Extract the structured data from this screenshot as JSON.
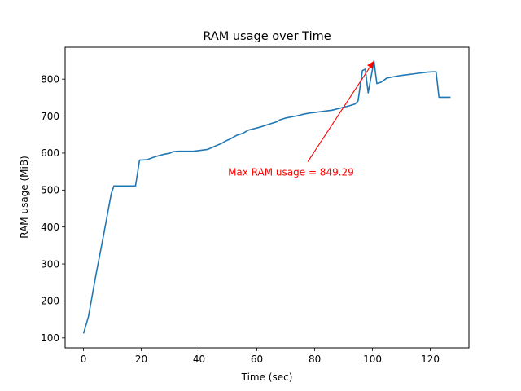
{
  "chart_data": {
    "type": "line",
    "title": "RAM usage over Time",
    "xlabel": "Time (sec)",
    "ylabel": "RAM usage (MiB)",
    "xlim": [
      -6.35,
      133.35
    ],
    "ylim": [
      73.1,
      886.4
    ],
    "xticks": [
      0,
      20,
      40,
      60,
      80,
      100,
      120
    ],
    "yticks": [
      100,
      200,
      300,
      400,
      500,
      600,
      700,
      800
    ],
    "grid": false,
    "line_color": "#1f77b4",
    "series": [
      {
        "x": [
          0,
          1.7,
          4.3,
          7,
          9.6,
          10.5,
          13,
          18,
          19.4,
          22,
          24,
          26,
          28,
          30,
          31,
          33,
          35,
          38,
          40,
          43,
          45,
          48,
          49,
          51,
          53,
          55,
          57,
          59,
          61,
          63,
          65,
          67,
          68,
          70,
          72,
          74,
          76,
          78,
          80,
          82,
          84,
          86,
          88,
          90,
          92,
          94,
          95,
          96.5,
          97.5,
          98.5,
          100.5,
          101.5,
          103,
          105,
          107,
          109,
          111,
          113,
          115,
          117,
          119,
          121,
          122,
          123,
          125,
          127
        ],
        "y": [
          112,
          157,
          270,
          380,
          490,
          511,
          511,
          511,
          581,
          582,
          588,
          593,
          597,
          600,
          604,
          605,
          605,
          605,
          607,
          610,
          617,
          627,
          632,
          639,
          648,
          653,
          662,
          666,
          670,
          675,
          680,
          685,
          690,
          695,
          698,
          701,
          705,
          708,
          710,
          712,
          714,
          716,
          720,
          724,
          728,
          733,
          741,
          823,
          827,
          763,
          849.29,
          788,
          792,
          803,
          806,
          809,
          811,
          813,
          815,
          817,
          819,
          820,
          820,
          751,
          751,
          751
        ]
      }
    ],
    "annotation": {
      "text": "Max RAM usage = 849.29",
      "color": "#ff0000",
      "point": [
        100.5,
        849.29
      ],
      "text_anchor": [
        50,
        548
      ]
    }
  }
}
